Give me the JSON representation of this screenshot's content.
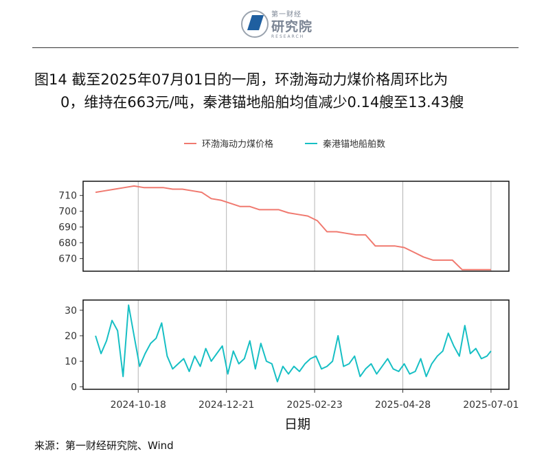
{
  "header": {
    "logo_small": "第一财经",
    "logo_main": "研究院",
    "logo_sub": "RESEARCH"
  },
  "title": {
    "line1": "图14  截至2025年07月01日的一周，环渤海动力煤价格周环比为",
    "line2": "0，维持在663元/吨，秦港锚地船舶均值减少0.14艘至13.43艘"
  },
  "source": "来源：第一财经研究院、Wind",
  "colors": {
    "price": "#F0796F",
    "ships": "#16BFC4",
    "grid": "#b4b4b4"
  },
  "chart_data": {
    "type": "line",
    "xlabel": "日期",
    "x_ticks": [
      "2024-10-18",
      "2024-12-21",
      "2025-02-23",
      "2025-04-28",
      "2025-07-01"
    ],
    "x_range": [
      "2024-09-08",
      "2025-07-14"
    ],
    "legend": {
      "position": "top",
      "entries": [
        "环渤海动力煤价格",
        "秦港锚地船舶数"
      ]
    },
    "panels": [
      {
        "series_name": "环渤海动力煤价格",
        "yticks": [
          670,
          680,
          690,
          700,
          710
        ],
        "ylim": [
          662,
          719
        ],
        "dates": [
          "2024-09-17",
          "2024-09-24",
          "2024-10-01",
          "2024-10-08",
          "2024-10-15",
          "2024-10-22",
          "2024-10-29",
          "2024-11-05",
          "2024-11-12",
          "2024-11-19",
          "2024-11-26",
          "2024-12-03",
          "2024-12-10",
          "2024-12-17",
          "2024-12-24",
          "2024-12-31",
          "2025-01-07",
          "2025-01-14",
          "2025-01-21",
          "2025-01-28",
          "2025-02-04",
          "2025-02-11",
          "2025-02-18",
          "2025-02-25",
          "2025-03-04",
          "2025-03-11",
          "2025-03-18",
          "2025-03-25",
          "2025-04-01",
          "2025-04-08",
          "2025-04-15",
          "2025-04-22",
          "2025-04-29",
          "2025-05-06",
          "2025-05-13",
          "2025-05-20",
          "2025-05-27",
          "2025-06-03",
          "2025-06-10",
          "2025-06-17",
          "2025-06-24",
          "2025-07-01"
        ],
        "values": [
          712,
          713,
          714,
          715,
          716,
          715,
          715,
          715,
          714,
          714,
          713,
          712,
          708,
          707,
          705,
          703,
          703,
          701,
          701,
          701,
          699,
          698,
          697,
          694,
          687,
          687,
          686,
          685,
          685,
          678,
          678,
          678,
          677,
          674,
          671,
          669,
          669,
          669,
          663,
          663,
          663,
          663
        ]
      },
      {
        "series_name": "秦港锚地船舶数",
        "yticks": [
          0,
          10,
          20,
          30
        ],
        "ylim": [
          -1,
          34
        ],
        "dates": [
          "2024-09-17",
          "2024-09-21",
          "2024-09-25",
          "2024-09-29",
          "2024-10-03",
          "2024-10-07",
          "2024-10-11",
          "2024-10-15",
          "2024-10-19",
          "2024-10-23",
          "2024-10-27",
          "2024-10-31",
          "2024-11-04",
          "2024-11-08",
          "2024-11-12",
          "2024-11-16",
          "2024-11-20",
          "2024-11-24",
          "2024-11-28",
          "2024-12-02",
          "2024-12-06",
          "2024-12-10",
          "2024-12-14",
          "2024-12-18",
          "2024-12-22",
          "2024-12-26",
          "2024-12-30",
          "2025-01-03",
          "2025-01-07",
          "2025-01-11",
          "2025-01-15",
          "2025-01-19",
          "2025-01-23",
          "2025-01-27",
          "2025-01-31",
          "2025-02-04",
          "2025-02-08",
          "2025-02-12",
          "2025-02-16",
          "2025-02-20",
          "2025-02-24",
          "2025-02-28",
          "2025-03-04",
          "2025-03-08",
          "2025-03-12",
          "2025-03-16",
          "2025-03-20",
          "2025-03-24",
          "2025-03-28",
          "2025-04-01",
          "2025-04-05",
          "2025-04-09",
          "2025-04-13",
          "2025-04-17",
          "2025-04-21",
          "2025-04-25",
          "2025-04-29",
          "2025-05-03",
          "2025-05-07",
          "2025-05-11",
          "2025-05-15",
          "2025-05-19",
          "2025-05-23",
          "2025-05-27",
          "2025-05-31",
          "2025-06-04",
          "2025-06-08",
          "2025-06-12",
          "2025-06-16",
          "2025-06-20",
          "2025-06-24",
          "2025-06-28",
          "2025-07-01"
        ],
        "values": [
          20,
          13,
          18,
          26,
          22,
          4,
          32,
          20,
          8,
          13,
          17,
          19,
          25,
          12,
          7,
          9,
          11,
          6,
          12,
          8,
          15,
          10,
          13,
          16,
          5,
          14,
          9,
          11,
          18,
          7,
          17,
          10,
          9,
          2,
          8,
          5,
          8,
          6,
          9,
          11,
          12,
          7,
          8,
          10,
          20,
          8,
          9,
          12,
          4,
          7,
          9,
          5,
          8,
          11,
          7,
          6,
          9,
          5,
          6,
          11,
          4,
          9,
          12,
          14,
          21,
          16,
          12,
          24,
          13,
          15,
          11,
          12,
          14
        ]
      }
    ]
  }
}
